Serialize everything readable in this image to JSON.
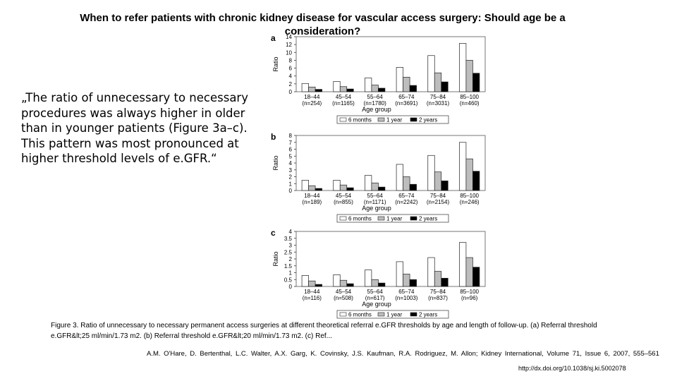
{
  "slide": {
    "title": "When to refer patients with chronic kidney disease for vascular access surgery: Should age be a consideration?",
    "quote": "„The ratio of unnecessary to necessary procedures was always higher in older than in younger patients (Figure 3a–c). This pattern was most pronounced at higher threshold levels of e.GFR.“",
    "caption": "Figure 3. Ratio of unnecessary to necessary permanent access surgeries at different theoretical referral e.GFR thresholds by age and length of follow-up. (a) Referral threshold e.GFR&lt;25 ml/min/1.73 m2. (b) Referral threshold e.GFR&lt;20 ml/min/1.73 m2. (c) Ref...",
    "reference": "A.M. O'Hare, D. Bertenthal, L.C. Walter, A.X. Garg, K. Covinsky, J.S. Kaufman, R.A. Rodriguez, M. Allon; Kidney International, Volume 71, Issue 6, 2007, 555–561",
    "doi": "http://dx.doi.org/10.1038/sj.ki.5002078"
  },
  "colors": {
    "six_months": "#ffffff",
    "one_year": "#bdbdbd",
    "two_years": "#000000"
  },
  "chart_data": [
    {
      "type": "bar",
      "panel_label": "a",
      "categories": [
        "18–44",
        "45–54",
        "55–64",
        "65–74",
        "75–84",
        "85–100"
      ],
      "n_labels": [
        "(n=254)",
        "(n=1165)",
        "(n=1780)",
        "(n=3691)",
        "(n=3031)",
        "(n=460)"
      ],
      "xlabel": "Age group",
      "ylabel": "Ratio",
      "ylim": [
        0,
        14
      ],
      "yticks": [
        "0",
        "2",
        "4",
        "6",
        "8",
        "10",
        "12",
        "14"
      ],
      "legend": [
        "6 months",
        "1 year",
        "2 years"
      ],
      "series": [
        {
          "name": "6 months",
          "values": [
            2.1,
            2.6,
            3.5,
            6.2,
            9.2,
            12.3
          ]
        },
        {
          "name": "1 year",
          "values": [
            1.2,
            1.3,
            1.7,
            3.7,
            4.8,
            8.0
          ]
        },
        {
          "name": "2 years",
          "values": [
            0.6,
            0.7,
            0.9,
            1.6,
            2.5,
            4.7
          ]
        }
      ]
    },
    {
      "type": "bar",
      "panel_label": "b",
      "categories": [
        "18–44",
        "45–54",
        "55–64",
        "65–74",
        "75–84",
        "85–100"
      ],
      "n_labels": [
        "(n=189)",
        "(n=855)",
        "(n=1171)",
        "(n=2242)",
        "(n=2154)",
        "(n=246)"
      ],
      "xlabel": "Age group",
      "ylabel": "Ratio",
      "ylim": [
        0,
        8
      ],
      "yticks": [
        "0",
        "1",
        "2",
        "3",
        "4",
        "5",
        "6",
        "7",
        "8"
      ],
      "legend": [
        "6 months",
        "1 year",
        "2 years"
      ],
      "series": [
        {
          "name": "6 months",
          "values": [
            1.5,
            1.5,
            2.2,
            3.8,
            5.1,
            7.0
          ]
        },
        {
          "name": "1 year",
          "values": [
            0.7,
            0.8,
            1.1,
            2.0,
            2.7,
            4.6
          ]
        },
        {
          "name": "2 years",
          "values": [
            0.3,
            0.4,
            0.5,
            0.9,
            1.4,
            2.8
          ]
        }
      ]
    },
    {
      "type": "bar",
      "panel_label": "c",
      "categories": [
        "18–44",
        "45–54",
        "55–64",
        "65–74",
        "75–84",
        "85–100"
      ],
      "n_labels": [
        "(n=116)",
        "(n=508)",
        "(n=617)",
        "(n=1003)",
        "(n=837)",
        "(n=96)"
      ],
      "xlabel": "Age group",
      "ylabel": "Ratio",
      "ylim": [
        0,
        4
      ],
      "yticks": [
        "0",
        "0.5",
        "1",
        "1.5",
        "2",
        "2.5",
        "3",
        "3.5",
        "4"
      ],
      "legend": [
        "6 months",
        "1 year",
        "2 years"
      ],
      "series": [
        {
          "name": "6 months",
          "values": [
            0.8,
            0.85,
            1.2,
            1.8,
            2.1,
            3.2
          ]
        },
        {
          "name": "1 year",
          "values": [
            0.4,
            0.45,
            0.5,
            0.9,
            1.1,
            2.1
          ]
        },
        {
          "name": "2 years",
          "values": [
            0.15,
            0.2,
            0.25,
            0.5,
            0.6,
            1.4
          ]
        }
      ]
    }
  ]
}
